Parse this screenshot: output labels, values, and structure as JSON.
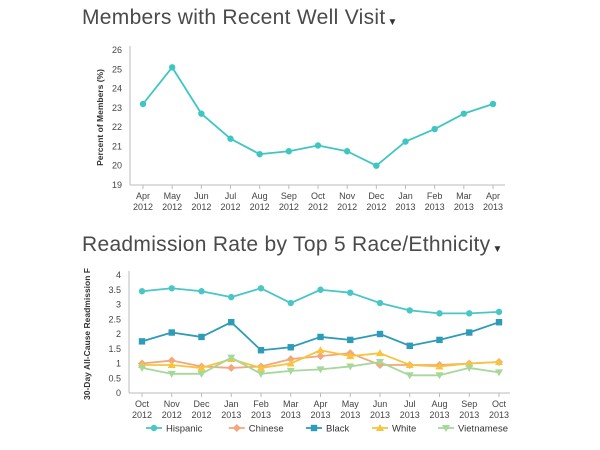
{
  "chart_data": [
    {
      "type": "line",
      "title": "Members with Recent Well Visit",
      "ylabel": "Percent of Members (%)",
      "xlabel": "",
      "ylim": [
        19,
        26
      ],
      "yticks": [
        19,
        20,
        21,
        22,
        23,
        24,
        25,
        26
      ],
      "categories": [
        [
          "Apr",
          "2012"
        ],
        [
          "May",
          "2012"
        ],
        [
          "Jun",
          "2012"
        ],
        [
          "Jul",
          "2012"
        ],
        [
          "Aug",
          "2012"
        ],
        [
          "Sep",
          "2012"
        ],
        [
          "Oct",
          "2012"
        ],
        [
          "Nov",
          "2012"
        ],
        [
          "Dec",
          "2012"
        ],
        [
          "Jan",
          "2013"
        ],
        [
          "Feb",
          "2013"
        ],
        [
          "Mar",
          "2013"
        ],
        [
          "Apr",
          "2013"
        ]
      ],
      "series": [
        {
          "color": "#3fc6c2",
          "marker": "circle",
          "values": [
            23.2,
            25.1,
            22.7,
            21.4,
            20.6,
            20.75,
            21.05,
            20.75,
            20.0,
            21.25,
            21.9,
            22.7,
            23.2
          ]
        }
      ],
      "grid": false,
      "legend": "none"
    },
    {
      "type": "line",
      "title": "Readmission Rate by Top 5 Race/Ethnicity",
      "ylabel": "30-Day All-Cause Readmission F",
      "xlabel": "",
      "ylim": [
        0,
        4
      ],
      "yticks": [
        0,
        0.5,
        1,
        1.5,
        2,
        2.5,
        3,
        3.5,
        4
      ],
      "categories": [
        [
          "Oct",
          "2012"
        ],
        [
          "Nov",
          "2012"
        ],
        [
          "Dec",
          "2012"
        ],
        [
          "Jan",
          "2013"
        ],
        [
          "Feb",
          "2013"
        ],
        [
          "Mar",
          "2013"
        ],
        [
          "Apr",
          "2013"
        ],
        [
          "May",
          "2013"
        ],
        [
          "Jun",
          "2013"
        ],
        [
          "Jul",
          "2013"
        ],
        [
          "Aug",
          "2013"
        ],
        [
          "Sep",
          "2013"
        ],
        [
          "Oct",
          "2013"
        ]
      ],
      "series": [
        {
          "name": "Hispanic",
          "color": "#4ac6c6",
          "marker": "circle",
          "values": [
            3.45,
            3.55,
            3.45,
            3.25,
            3.55,
            3.05,
            3.5,
            3.4,
            3.05,
            2.8,
            2.7,
            2.7,
            2.75
          ]
        },
        {
          "name": "Chinese",
          "color": "#f2a77c",
          "marker": "diamond",
          "values": [
            1.0,
            1.1,
            0.9,
            0.85,
            0.9,
            1.15,
            1.25,
            1.35,
            0.95,
            0.95,
            0.95,
            1.0,
            1.05
          ]
        },
        {
          "name": "Black",
          "color": "#2e9bb8",
          "marker": "square",
          "values": [
            1.75,
            2.05,
            1.9,
            2.4,
            1.45,
            1.55,
            1.9,
            1.8,
            2.0,
            1.6,
            1.8,
            2.05,
            2.4
          ]
        },
        {
          "name": "White",
          "color": "#f8c43e",
          "marker": "triangle",
          "values": [
            0.95,
            0.95,
            0.85,
            1.15,
            0.85,
            1.0,
            1.45,
            1.25,
            1.35,
            0.95,
            0.9,
            1.0,
            1.05
          ]
        },
        {
          "name": "Vietnamese",
          "color": "#a6d89a",
          "marker": "triangle-down",
          "values": [
            0.85,
            0.65,
            0.65,
            1.2,
            0.65,
            0.75,
            0.8,
            0.9,
            1.05,
            0.6,
            0.6,
            0.85,
            0.7
          ]
        }
      ],
      "grid": false,
      "legend": "bottom"
    }
  ]
}
